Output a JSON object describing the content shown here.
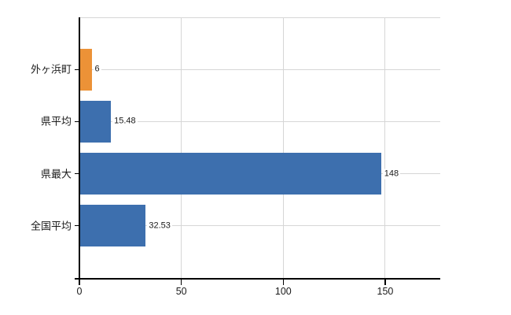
{
  "chart_data": {
    "type": "bar",
    "orientation": "horizontal",
    "title": "",
    "categories": [
      "外ヶ浜町",
      "県平均",
      "県最大",
      "全国平均"
    ],
    "values": [
      6,
      15.48,
      148,
      32.53
    ],
    "value_labels": [
      "6",
      "15.48",
      "148",
      "32.53"
    ],
    "bar_colors": [
      "#EC9237",
      "#3D6FAE",
      "#3D6FAE",
      "#3D6FAE"
    ],
    "xlim": [
      0,
      177
    ],
    "x_ticks": [
      0,
      50,
      100,
      150
    ],
    "x_tick_labels": [
      "0",
      "50",
      "100",
      "150"
    ],
    "grid": true,
    "legend": false,
    "gridlines": {
      "vertical_at_ticks": true,
      "horizontal_at_rows": true,
      "top_border": true
    },
    "colors": {
      "bar_blue": "#3D6FAE",
      "bar_orange": "#EC9237",
      "gridline": "#D6D6D6",
      "axis": "#000000",
      "text": "#1A1A1A",
      "background": "#FFFFFF"
    }
  }
}
